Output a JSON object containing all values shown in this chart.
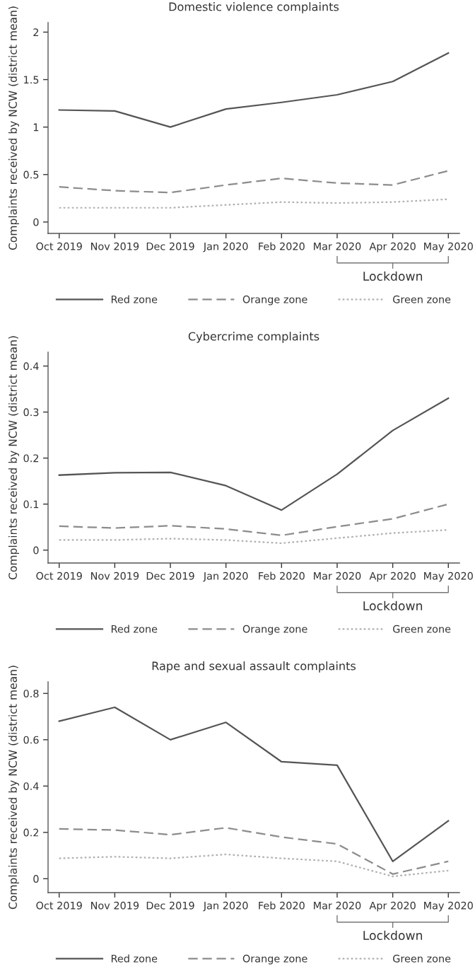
{
  "chart_data": [
    {
      "type": "line",
      "title": "Domestic violence complaints",
      "ylabel": "Complaints received by NCW (district mean)",
      "categories": [
        "Oct 2019",
        "Nov 2019",
        "Dec 2019",
        "Jan 2020",
        "Feb 2020",
        "Mar 2020",
        "Apr 2020",
        "May 2020"
      ],
      "ylim": [
        -0.12,
        2.1
      ],
      "yticks": [
        0,
        {
          "value": 0.5,
          "label": "0.5"
        },
        1,
        {
          "value": 1.5,
          "label": "1.5"
        },
        2
      ],
      "legend": "bottom",
      "grid": false,
      "annotations": [
        "Lockdown"
      ],
      "series": [
        {
          "name": "Red zone",
          "color": "#555555",
          "line_style": "solid",
          "values": [
            1.18,
            1.17,
            1.0,
            1.19,
            1.26,
            1.34,
            1.48,
            1.78
          ]
        },
        {
          "name": "Orange zone",
          "color": "#8c8c8c",
          "line_style": "dashed",
          "values": [
            0.37,
            0.33,
            0.31,
            0.39,
            0.46,
            0.41,
            0.39,
            0.54
          ]
        },
        {
          "name": "Green zone",
          "color": "#b0b0b0",
          "line_style": "dotted",
          "values": [
            0.15,
            0.15,
            0.15,
            0.18,
            0.21,
            0.2,
            0.21,
            0.24
          ]
        }
      ]
    },
    {
      "type": "line",
      "title": "Cybercrime complaints",
      "ylabel": "Complaints received by NCW (district mean)",
      "categories": [
        "Oct 2019",
        "Nov 2019",
        "Dec 2019",
        "Jan 2020",
        "Feb 2020",
        "Mar 2020",
        "Apr 2020",
        "May 2020"
      ],
      "ylim": [
        -0.028,
        0.43
      ],
      "yticks": [
        0,
        0.1,
        0.2,
        0.3,
        0.4
      ],
      "legend": "bottom",
      "grid": false,
      "annotations": [
        "Lockdown"
      ],
      "series": [
        {
          "name": "Red zone",
          "color": "#555555",
          "line_style": "solid",
          "values": [
            0.163,
            0.168,
            0.169,
            0.14,
            0.087,
            0.165,
            0.26,
            0.33
          ]
        },
        {
          "name": "Orange zone",
          "color": "#8c8c8c",
          "line_style": "dashed",
          "values": [
            0.052,
            0.048,
            0.053,
            0.046,
            0.032,
            0.051,
            0.068,
            0.1
          ]
        },
        {
          "name": "Green zone",
          "color": "#b0b0b0",
          "line_style": "dotted",
          "values": [
            0.022,
            0.022,
            0.025,
            0.022,
            0.015,
            0.026,
            0.037,
            0.044
          ]
        }
      ]
    },
    {
      "type": "line",
      "title": "Rape and sexual assault complaints",
      "ylabel": "Complaints received by NCW (district mean)",
      "categories": [
        "Oct 2019",
        "Nov 2019",
        "Dec 2019",
        "Jan 2020",
        "Feb 2020",
        "Mar 2020",
        "Apr 2020",
        "May 2020"
      ],
      "ylim": [
        -0.06,
        0.85
      ],
      "yticks": [
        0,
        0.2,
        0.4,
        0.6,
        0.8
      ],
      "legend": "bottom",
      "grid": false,
      "annotations": [
        "Lockdown"
      ],
      "series": [
        {
          "name": "Red zone",
          "color": "#555555",
          "line_style": "solid",
          "values": [
            0.68,
            0.74,
            0.6,
            0.675,
            0.505,
            0.49,
            0.075,
            0.25
          ]
        },
        {
          "name": "Orange zone",
          "color": "#8c8c8c",
          "line_style": "dashed",
          "values": [
            0.215,
            0.21,
            0.19,
            0.22,
            0.18,
            0.15,
            0.02,
            0.075
          ]
        },
        {
          "name": "Green zone",
          "color": "#b0b0b0",
          "line_style": "dotted",
          "values": [
            0.088,
            0.095,
            0.088,
            0.105,
            0.088,
            0.075,
            0.01,
            0.035
          ]
        }
      ]
    }
  ]
}
